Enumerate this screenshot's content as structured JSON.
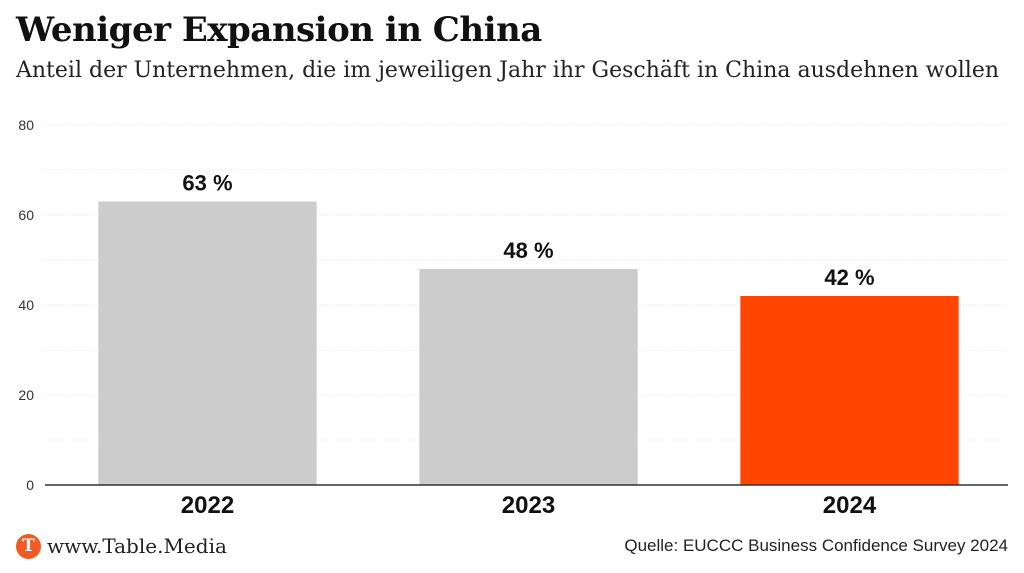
{
  "header": {
    "title": "Weniger Expansion in China",
    "subtitle": "Anteil der Unternehmen, die im jeweiligen Jahr ihr Geschäft in China ausdehnen wollen"
  },
  "chart_data": {
    "type": "bar",
    "categories": [
      "2022",
      "2023",
      "2024"
    ],
    "values": [
      63,
      48,
      42
    ],
    "data_labels": [
      "63 %",
      "48 %",
      "42 %"
    ],
    "bar_colors": [
      "#cccccc",
      "#cccccc",
      "#ff4500"
    ],
    "ylim": [
      0,
      80
    ],
    "yticks": [
      0,
      20,
      40,
      60,
      80
    ],
    "grid": true,
    "xlabel": "",
    "ylabel": ""
  },
  "footer": {
    "logo_letter": "T",
    "brand": "www.Table.Media",
    "source": "Quelle: EUCCC Business Confidence Survey 2024"
  },
  "colors": {
    "accent": "#ff4500",
    "bar_default": "#cccccc",
    "logo": "#f15a22"
  }
}
